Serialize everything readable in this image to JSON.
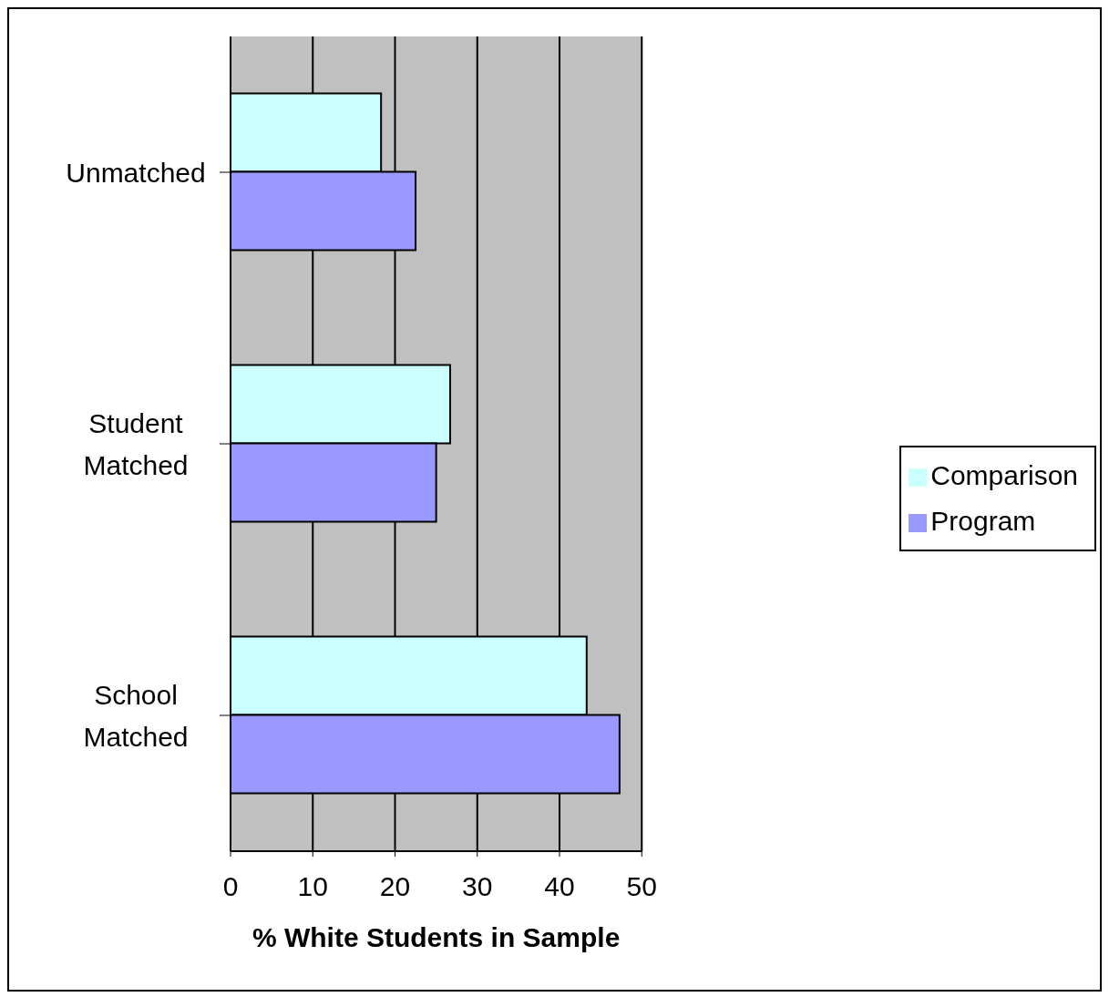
{
  "chart_data": {
    "type": "bar",
    "orientation": "horizontal",
    "xlabel": "% White Students in Sample",
    "categories": [
      "Unmatched",
      "Student Matched",
      "School Matched"
    ],
    "series": [
      {
        "name": "Comparison",
        "color": "#ccffff",
        "values": [
          18.3,
          26.7,
          43.3
        ]
      },
      {
        "name": "Program",
        "color": "#9999ff",
        "values": [
          22.5,
          25.0,
          47.3
        ]
      }
    ],
    "xlim": [
      0,
      50
    ],
    "xticks": [
      0,
      10,
      20,
      30,
      40,
      50
    ],
    "grid": "x",
    "legend": "right"
  }
}
